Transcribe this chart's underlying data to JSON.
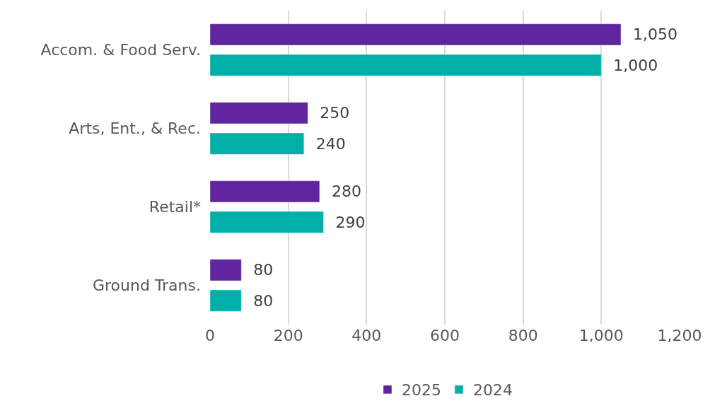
{
  "chart_data": {
    "type": "bar",
    "orientation": "horizontal",
    "categories": [
      "Accom. & Food Serv.",
      "Arts, Ent., & Rec.",
      "Retail*",
      "Ground Trans."
    ],
    "series": [
      {
        "name": "2025",
        "color": "#5f259f",
        "values": [
          1050,
          250,
          280,
          80
        ],
        "value_labels": [
          "1,050",
          "250",
          "280",
          "80"
        ]
      },
      {
        "name": "2024",
        "color": "#00b0a8",
        "values": [
          1000,
          240,
          290,
          80
        ],
        "value_labels": [
          "1,000",
          "240",
          "290",
          "80"
        ]
      }
    ],
    "xlim": [
      0,
      1200
    ],
    "xticks": [
      0,
      200,
      400,
      600,
      800,
      {
        "value": 1000,
        "label": "1,000"
      },
      {
        "value": 1200,
        "label": "1,200"
      }
    ],
    "grid": "x",
    "legend": "bottom"
  }
}
